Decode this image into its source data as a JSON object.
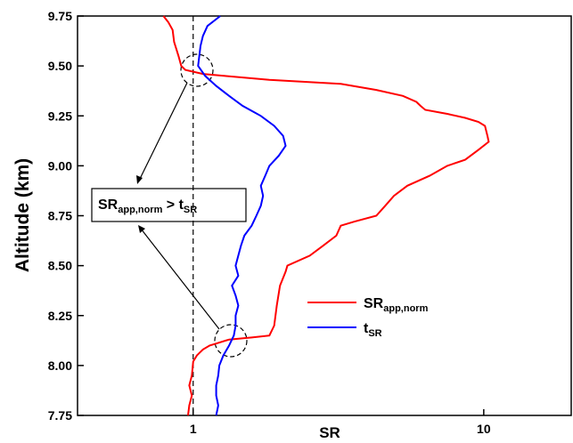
{
  "chart_data": {
    "type": "line",
    "x_label": "SR",
    "y_label": "Altitude (km)",
    "xscale": "log",
    "xlim": [
      0.4,
      20
    ],
    "xticks": [
      1,
      10
    ],
    "ylim": [
      7.75,
      9.75
    ],
    "yticks": [
      7.75,
      {
        "value": 8,
        "label": "8.00"
      },
      8.25,
      {
        "value": 8.5,
        "label": "8.50"
      },
      8.75,
      {
        "value": 9,
        "label": "9.00"
      },
      9.25,
      {
        "value": 9.5,
        "label": "9.50"
      },
      9.75
    ],
    "vline": 1,
    "annotation": [
      {
        "text": "SR"
      },
      {
        "text": "app,norm",
        "sub": true
      },
      {
        "text": " > t"
      },
      {
        "text": "SR",
        "sub": true
      }
    ],
    "series": [
      {
        "name": "SR",
        "name_sub": "app,norm",
        "color": "#ff0000",
        "y": [
          9.75,
          9.72,
          9.68,
          9.62,
          9.55,
          9.5,
          9.48,
          9.46,
          9.45,
          9.43,
          9.41,
          9.38,
          9.35,
          9.32,
          9.3,
          9.28,
          9.26,
          9.24,
          9.22,
          9.2,
          9.15,
          9.12,
          9.08,
          9.03,
          9.0,
          8.95,
          8.9,
          8.85,
          8.8,
          8.75,
          8.72,
          8.7,
          8.65,
          8.6,
          8.55,
          8.5,
          8.47,
          8.4,
          8.3,
          8.2,
          8.15,
          8.14,
          8.13,
          8.11,
          8.1,
          8.08,
          8.05,
          8.02,
          7.95,
          7.9,
          7.85,
          7.8,
          7.75
        ],
        "values": [
          0.79,
          0.82,
          0.85,
          0.86,
          0.89,
          0.91,
          0.94,
          1.08,
          1.29,
          1.83,
          3.22,
          4.27,
          5.27,
          5.86,
          6.06,
          6.29,
          7.49,
          8.63,
          9.59,
          10.1,
          10.3,
          10.4,
          9.59,
          8.63,
          7.49,
          6.51,
          5.46,
          4.91,
          4.58,
          4.27,
          3.58,
          3.22,
          3.11,
          2.8,
          2.52,
          2.11,
          2.08,
          1.99,
          1.94,
          1.9,
          1.83,
          1.59,
          1.33,
          1.2,
          1.14,
          1.08,
          1.03,
          1.0,
          0.99,
          0.97,
          0.99,
          0.97,
          0.96
        ]
      },
      {
        "name": "t",
        "name_sub": "SR",
        "color": "#0000ff",
        "y": [
          9.75,
          9.7,
          9.65,
          9.6,
          9.5,
          9.45,
          9.4,
          9.35,
          9.3,
          9.25,
          9.2,
          9.15,
          9.1,
          9.05,
          9.0,
          8.95,
          8.9,
          8.85,
          8.8,
          8.75,
          8.7,
          8.65,
          8.6,
          8.55,
          8.5,
          8.45,
          8.4,
          8.35,
          8.3,
          8.25,
          8.2,
          8.15,
          8.1,
          8.05,
          8.0,
          7.95,
          7.9,
          7.85,
          7.8,
          7.75
        ],
        "values": [
          1.24,
          1.12,
          1.08,
          1.06,
          1.04,
          1.1,
          1.2,
          1.33,
          1.48,
          1.71,
          1.9,
          2.04,
          2.08,
          1.97,
          1.83,
          1.77,
          1.71,
          1.74,
          1.71,
          1.65,
          1.59,
          1.5,
          1.46,
          1.43,
          1.4,
          1.43,
          1.36,
          1.4,
          1.43,
          1.4,
          1.4,
          1.38,
          1.33,
          1.27,
          1.23,
          1.22,
          1.2,
          1.2,
          1.22,
          1.2
        ]
      }
    ]
  }
}
